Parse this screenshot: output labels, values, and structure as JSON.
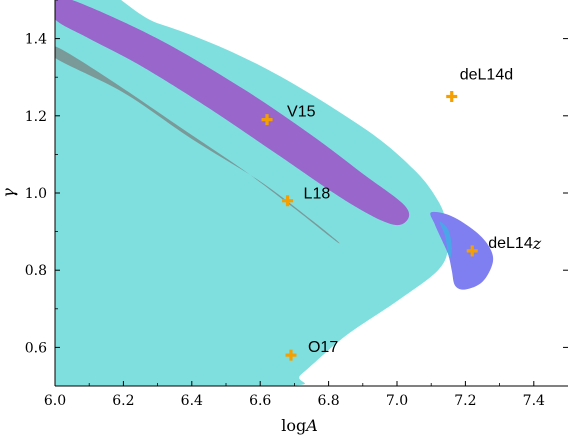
{
  "chart_data": {
    "type": "scatter",
    "xlabel_prefix": "log",
    "xlabel_var": "A",
    "ylabel": "γ",
    "xlim": [
      6.0,
      7.5
    ],
    "ylim": [
      0.5,
      1.5
    ],
    "x_ticks": [
      6.0,
      6.2,
      6.4,
      6.6,
      6.8,
      7.0,
      7.2,
      7.4
    ],
    "y_ticks": [
      0.6,
      0.8,
      1.0,
      1.2,
      1.4
    ],
    "x_tick_labels": [
      "6.0",
      "6.2",
      "6.4",
      "6.6",
      "6.8",
      "7.0",
      "7.2",
      "7.4"
    ],
    "y_tick_labels": [
      "0.6",
      "0.8",
      "1.0",
      "1.2",
      "1.4"
    ],
    "grid": false,
    "colors": {
      "cyan_region": "#7fdfdf",
      "purple_band": "#9966cc",
      "gray_band": "#7a9a9a",
      "blue_region": "#7f7ff2",
      "blue_overlap": "#4aa6e8",
      "marker": "#f5a000"
    },
    "regions": [
      {
        "id": "cyan",
        "points": [
          [
            6.0,
            1.5
          ],
          [
            6.3,
            1.44
          ],
          [
            6.6,
            1.33
          ],
          [
            6.9,
            1.17
          ],
          [
            7.05,
            1.06
          ],
          [
            7.12,
            0.98
          ],
          [
            7.145,
            0.92
          ],
          [
            7.15,
            0.86
          ],
          [
            7.12,
            0.8
          ],
          [
            7.0,
            0.72
          ],
          [
            6.85,
            0.63
          ],
          [
            6.72,
            0.53
          ],
          [
            6.67,
            0.5
          ],
          [
            6.0,
            0.5
          ]
        ]
      },
      {
        "id": "purple",
        "points": [
          [
            6.0,
            1.495
          ],
          [
            6.05,
            1.5
          ],
          [
            6.3,
            1.4
          ],
          [
            6.55,
            1.27
          ],
          [
            6.75,
            1.15
          ],
          [
            6.9,
            1.05
          ],
          [
            7.02,
            0.97
          ],
          [
            7.03,
            0.93
          ],
          [
            6.98,
            0.92
          ],
          [
            6.85,
            0.98
          ],
          [
            6.65,
            1.1
          ],
          [
            6.45,
            1.22
          ],
          [
            6.25,
            1.33
          ],
          [
            6.1,
            1.4
          ],
          [
            6.0,
            1.45
          ]
        ]
      },
      {
        "id": "gray",
        "points": [
          [
            6.0,
            1.38
          ],
          [
            6.15,
            1.3
          ],
          [
            6.35,
            1.18
          ],
          [
            6.55,
            1.06
          ],
          [
            6.7,
            0.96
          ],
          [
            6.8,
            0.89
          ],
          [
            6.83,
            0.87
          ],
          [
            6.82,
            0.88
          ],
          [
            6.75,
            0.93
          ],
          [
            6.6,
            1.03
          ],
          [
            6.4,
            1.14
          ],
          [
            6.2,
            1.26
          ],
          [
            6.0,
            1.35
          ]
        ]
      },
      {
        "id": "blue",
        "points": [
          [
            7.1,
            0.95
          ],
          [
            7.16,
            0.94
          ],
          [
            7.23,
            0.9
          ],
          [
            7.27,
            0.86
          ],
          [
            7.28,
            0.82
          ],
          [
            7.25,
            0.77
          ],
          [
            7.2,
            0.75
          ],
          [
            7.17,
            0.76
          ],
          [
            7.16,
            0.8
          ],
          [
            7.15,
            0.84
          ],
          [
            7.13,
            0.88
          ],
          [
            7.11,
            0.92
          ]
        ]
      },
      {
        "id": "overlap",
        "points": [
          [
            7.125,
            0.925
          ],
          [
            7.15,
            0.905
          ],
          [
            7.16,
            0.86
          ],
          [
            7.155,
            0.83
          ],
          [
            7.148,
            0.85
          ],
          [
            7.14,
            0.89
          ]
        ]
      }
    ],
    "points": [
      {
        "label": "V15",
        "x": 6.62,
        "y": 1.19,
        "label_style": "plain"
      },
      {
        "label": "L18",
        "x": 6.68,
        "y": 0.98,
        "label_style": "plain"
      },
      {
        "label": "O17",
        "x": 6.69,
        "y": 0.58,
        "label_style": "plain"
      },
      {
        "label": "deL14d",
        "x": 7.16,
        "y": 1.25,
        "label_style": "plain"
      },
      {
        "label": "deL14",
        "label_suffix": "z",
        "x": 7.22,
        "y": 0.85,
        "label_style": "suffix-italic"
      }
    ]
  }
}
